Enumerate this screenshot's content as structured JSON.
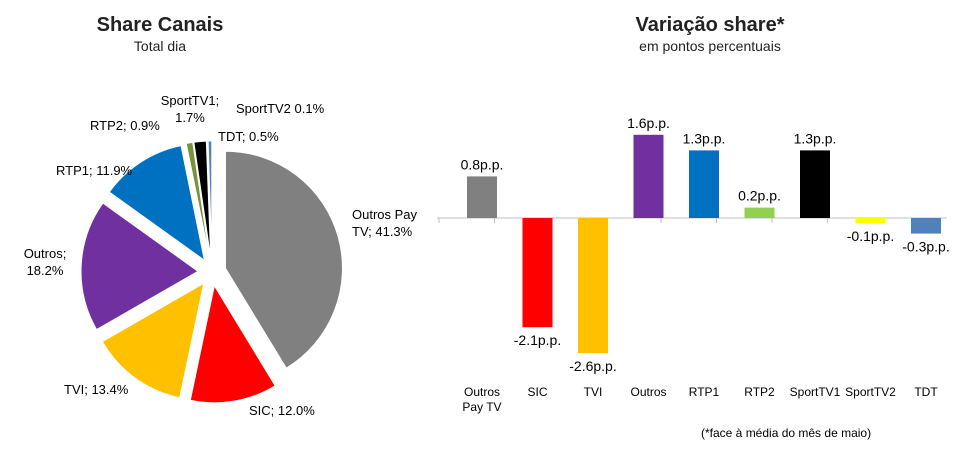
{
  "chart_data": [
    {
      "type": "pie",
      "title": "Share Canais",
      "subtitle": "Total dia",
      "slices": [
        {
          "name": "Outros Pay TV",
          "value": 41.3,
          "label": "Outros Pay TV; 41.3%",
          "color": "#808080"
        },
        {
          "name": "SIC",
          "value": 12.0,
          "label": "SIC; 12.0%",
          "color": "#ff0000"
        },
        {
          "name": "TVI",
          "value": 13.4,
          "label": "TVI; 13.4%",
          "color": "#ffc000"
        },
        {
          "name": "Outros",
          "value": 18.2,
          "label": "Outros; 18.2%",
          "color": "#7030a0"
        },
        {
          "name": "RTP1",
          "value": 11.9,
          "label": "RTP1; 11.9%",
          "color": "#0070c0"
        },
        {
          "name": "RTP2",
          "value": 0.9,
          "label": "RTP2; 0.9%",
          "color": "#77933c"
        },
        {
          "name": "SportTV1",
          "value": 1.7,
          "label": "SportTV1; 1.7%",
          "color": "#000000"
        },
        {
          "name": "SportTV2",
          "value": 0.1,
          "label": "SportTV2 0.1%",
          "color": "#ffff00"
        },
        {
          "name": "TDT",
          "value": 0.5,
          "label": "TDT; 0.5%",
          "color": "#4f81bd"
        }
      ]
    },
    {
      "type": "bar",
      "title": "Variação share*",
      "subtitle": "em pontos percentuais",
      "categories": [
        "Outros Pay TV",
        "SIC",
        "TVI",
        "Outros",
        "RTP1",
        "RTP2",
        "SportTV1",
        "SportTV2",
        "TDT"
      ],
      "values": [
        0.8,
        -2.1,
        -2.6,
        1.6,
        1.3,
        0.2,
        1.3,
        -0.1,
        -0.3
      ],
      "value_labels": [
        "0.8p.p.",
        "-2.1p.p.",
        "-2.6p.p.",
        "1.6p.p.",
        "1.3p.p.",
        "0.2p.p.",
        "1.3p.p.",
        "-0.1p.p.",
        "-0.3p.p."
      ],
      "colors": [
        "#808080",
        "#ff0000",
        "#ffc000",
        "#7030a0",
        "#0070c0",
        "#92d050",
        "#000000",
        "#ffff00",
        "#4f81bd"
      ],
      "footnote": "(*face à média do mês de maio)"
    }
  ]
}
